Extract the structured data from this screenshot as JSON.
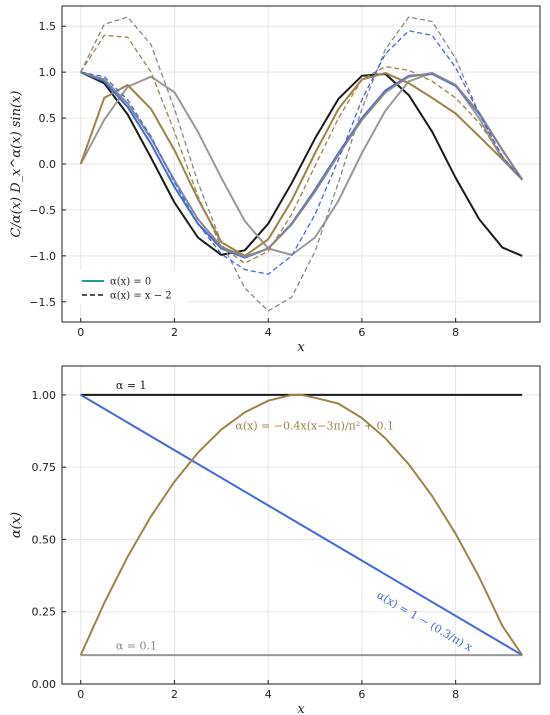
{
  "chart_data": [
    {
      "type": "line",
      "xlabel": "x",
      "ylabel": "C/α(x) D_x^α(x) sin(x)",
      "xlim": [
        -0.4,
        9.8
      ],
      "ylim": [
        -1.72,
        1.72
      ],
      "xticks": [
        "0",
        "2",
        "4",
        "6",
        "8"
      ],
      "yticks": [
        "−1.5",
        "−1.0",
        "−0.5",
        "0.0",
        "0.5",
        "1.0",
        "1.5"
      ],
      "grid": true,
      "legend": {
        "position": "bottom-left",
        "entries": [
          {
            "label": "α(x) = 0",
            "style": "solid",
            "color": "#1f9e89"
          },
          {
            "label": "α(x) = x − 2",
            "style": "dashed",
            "color": "#555555"
          }
        ]
      },
      "series": [
        {
          "style": "solid",
          "color": "#1a1a1a",
          "x": [
            0,
            0.5,
            1,
            1.5,
            2,
            2.5,
            3,
            3.5,
            4,
            4.5,
            5,
            5.5,
            6,
            6.5,
            7,
            7.5,
            8,
            8.5,
            9,
            9.42
          ],
          "y": [
            1.0,
            0.88,
            0.54,
            0.07,
            -0.42,
            -0.8,
            -0.99,
            -0.94,
            -0.65,
            -0.21,
            0.28,
            0.71,
            0.96,
            0.98,
            0.75,
            0.35,
            -0.15,
            -0.6,
            -0.91,
            -1.0
          ]
        },
        {
          "style": "solid",
          "color": "#999999",
          "x": [
            0,
            0.5,
            1,
            1.5,
            2,
            2.5,
            3,
            3.5,
            4,
            4.5,
            5,
            5.5,
            6,
            6.5,
            7,
            7.5,
            8,
            8.5,
            9,
            9.42
          ],
          "y": [
            0.0,
            0.48,
            0.84,
            0.95,
            0.78,
            0.35,
            -0.15,
            -0.62,
            -0.92,
            -0.99,
            -0.8,
            -0.4,
            0.12,
            0.58,
            0.9,
            0.99,
            0.86,
            0.5,
            0.05,
            -0.17
          ]
        },
        {
          "style": "solid",
          "color": "#a0834a",
          "x": [
            0,
            0.5,
            1,
            1.5,
            2,
            2.5,
            3,
            3.5,
            4,
            4.5,
            5,
            5.5,
            6,
            6.5,
            7,
            7.5,
            8,
            8.5,
            9,
            9.42
          ],
          "y": [
            0.0,
            0.72,
            0.86,
            0.6,
            0.15,
            -0.38,
            -0.85,
            -1.0,
            -0.82,
            -0.4,
            0.12,
            0.6,
            0.92,
            0.99,
            0.88,
            0.72,
            0.55,
            0.3,
            0.05,
            -0.17
          ]
        },
        {
          "style": "solid",
          "color": "#4169e1",
          "x": [
            0,
            0.5,
            1,
            1.5,
            2,
            2.5,
            3,
            3.5,
            4,
            4.5,
            5,
            5.5,
            6,
            6.5,
            7,
            7.5,
            8,
            8.5,
            9,
            9.42
          ],
          "y": [
            1.0,
            0.9,
            0.62,
            0.22,
            -0.25,
            -0.65,
            -0.92,
            -1.02,
            -0.92,
            -0.65,
            -0.28,
            0.12,
            0.5,
            0.8,
            0.96,
            0.98,
            0.85,
            0.55,
            0.15,
            -0.17
          ]
        },
        {
          "style": "solid",
          "color": "#888888",
          "x": [
            0,
            0.5,
            1,
            1.5,
            2,
            2.5,
            3,
            3.5,
            4,
            4.5,
            5,
            5.5,
            6,
            6.5,
            7,
            7.5,
            8,
            8.5,
            9,
            9.42
          ],
          "y": [
            1.0,
            0.92,
            0.66,
            0.28,
            -0.18,
            -0.6,
            -0.9,
            -1.01,
            -0.92,
            -0.66,
            -0.3,
            0.1,
            0.48,
            0.78,
            0.95,
            0.99,
            0.86,
            0.56,
            0.15,
            -0.17
          ]
        },
        {
          "style": "dashed",
          "color": "#888888",
          "x": [
            0,
            0.5,
            1,
            1.5,
            2,
            2.5,
            3,
            3.5,
            4,
            4.5,
            5,
            5.5,
            6,
            6.5,
            7,
            7.5,
            8,
            8.5,
            9,
            9.42
          ],
          "y": [
            1.0,
            1.52,
            1.6,
            1.3,
            0.6,
            -0.2,
            -0.85,
            -1.35,
            -1.6,
            -1.45,
            -0.95,
            -0.2,
            0.6,
            1.25,
            1.6,
            1.55,
            1.15,
            0.55,
            0.05,
            -0.17
          ]
        },
        {
          "style": "dashed",
          "color": "#a0834a",
          "x": [
            0,
            0.5,
            1,
            1.5,
            2,
            2.5,
            3,
            3.5,
            4,
            4.5,
            5,
            5.5,
            6,
            6.5,
            7,
            7.5,
            8,
            8.5,
            9,
            9.42
          ],
          "y": [
            1.0,
            1.4,
            1.38,
            1.0,
            0.35,
            -0.35,
            -0.9,
            -1.08,
            -0.95,
            -0.55,
            -0.02,
            0.5,
            0.92,
            1.06,
            1.02,
            0.9,
            0.72,
            0.45,
            0.08,
            -0.17
          ]
        },
        {
          "style": "dashed",
          "color": "#4169e1",
          "x": [
            0,
            0.5,
            1,
            1.5,
            2,
            2.5,
            3,
            3.5,
            4,
            4.5,
            5,
            5.5,
            6,
            6.5,
            7,
            7.5,
            8,
            8.5,
            9,
            9.42
          ],
          "y": [
            1.0,
            0.95,
            0.7,
            0.3,
            -0.2,
            -0.65,
            -0.98,
            -1.15,
            -1.2,
            -1.0,
            -0.55,
            0.05,
            0.7,
            1.2,
            1.45,
            1.4,
            1.05,
            0.55,
            0.08,
            -0.17
          ]
        }
      ]
    },
    {
      "type": "line",
      "xlabel": "x",
      "ylabel": "α(x)",
      "xlim": [
        -0.4,
        9.8
      ],
      "ylim": [
        0.0,
        1.1
      ],
      "xticks": [
        "0",
        "2",
        "4",
        "6",
        "8"
      ],
      "yticks": [
        "0.00",
        "0.25",
        "0.50",
        "0.75",
        "1.00"
      ],
      "grid": true,
      "annotations": [
        {
          "text": "α = 1",
          "x": 0.75,
          "y": 1.02,
          "color": "#1a1a1a"
        },
        {
          "text": "α(x) = −0.4x(x−3π)/π² + 0.1",
          "x": 3.3,
          "y": 0.88,
          "color": "#a0834a"
        },
        {
          "text": "α(x) = 1 − (0.3/π) x",
          "x": 6.3,
          "y": 0.3,
          "color": "#4169e1"
        },
        {
          "text": "α = 0.1",
          "x": 0.75,
          "y": 0.12,
          "color": "#888888"
        }
      ],
      "series": [
        {
          "style": "solid",
          "color": "#1a1a1a",
          "x": [
            0,
            9.42
          ],
          "y": [
            1.0,
            1.0
          ]
        },
        {
          "style": "solid",
          "color": "#999999",
          "x": [
            0,
            9.42
          ],
          "y": [
            0.1,
            0.1
          ]
        },
        {
          "style": "solid",
          "color": "#4169e1",
          "x": [
            0,
            9.42
          ],
          "y": [
            1.0,
            0.1
          ]
        },
        {
          "style": "solid",
          "color": "#a0834a",
          "x": [
            0,
            0.5,
            1,
            1.5,
            2,
            2.5,
            3,
            3.5,
            4,
            4.5,
            4.71,
            5,
            5.5,
            6,
            6.5,
            7,
            7.5,
            8,
            8.5,
            9,
            9.42
          ],
          "y": [
            0.1,
            0.28,
            0.44,
            0.58,
            0.7,
            0.8,
            0.88,
            0.94,
            0.98,
            1.0,
            1.0,
            0.99,
            0.97,
            0.92,
            0.85,
            0.76,
            0.65,
            0.52,
            0.37,
            0.2,
            0.1
          ]
        }
      ]
    }
  ]
}
